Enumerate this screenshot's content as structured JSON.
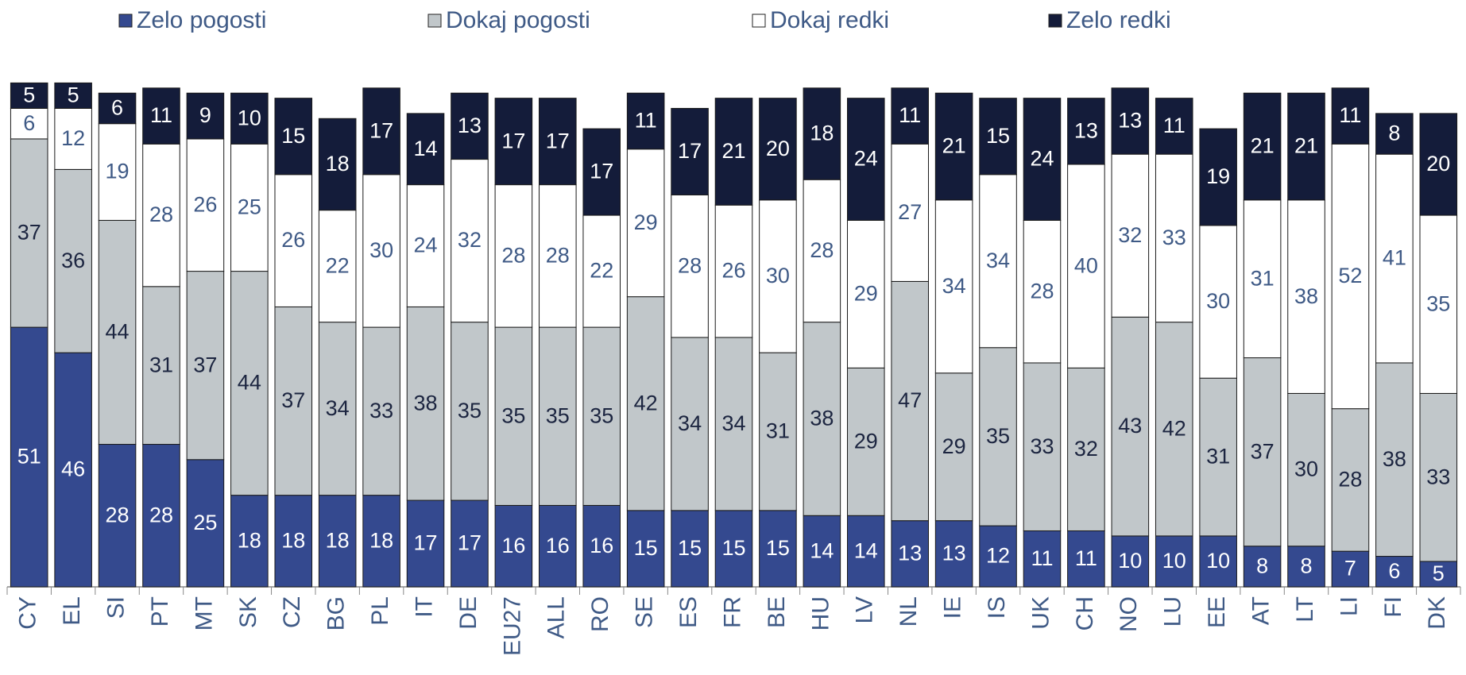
{
  "chart_data": {
    "type": "stacked_bar",
    "categories": [
      "CY",
      "EL",
      "SI",
      "PT",
      "MT",
      "SK",
      "CZ",
      "BG",
      "PL",
      "IT",
      "DE",
      "EU27",
      "ALL",
      "RO",
      "SE",
      "ES",
      "FR",
      "BE",
      "HU",
      "LV",
      "NL",
      "IE",
      "IS",
      "UK",
      "CH",
      "NO",
      "LU",
      "EE",
      "AT",
      "LT",
      "LI",
      "FI",
      "DK"
    ],
    "series": [
      {
        "name": "Zelo pogosti",
        "color": "#34498f",
        "label_color": "#ffffff",
        "values": [
          51,
          46,
          28,
          28,
          25,
          18,
          18,
          18,
          18,
          17,
          17,
          16,
          16,
          16,
          15,
          15,
          15,
          15,
          14,
          14,
          13,
          13,
          12,
          11,
          11,
          10,
          10,
          10,
          8,
          8,
          7,
          6,
          5
        ]
      },
      {
        "name": "Dokaj pogosti",
        "color": "#c1c7ca",
        "label_color": "#1c2540",
        "values": [
          37,
          36,
          44,
          31,
          37,
          44,
          37,
          34,
          33,
          38,
          35,
          35,
          35,
          35,
          42,
          34,
          34,
          31,
          38,
          29,
          47,
          29,
          35,
          33,
          32,
          43,
          42,
          31,
          37,
          30,
          28,
          38,
          33
        ]
      },
      {
        "name": "Dokaj redki",
        "color": "#ffffff",
        "label_color": "#3f5a86",
        "values": [
          6,
          12,
          19,
          28,
          26,
          25,
          26,
          22,
          30,
          24,
          32,
          28,
          28,
          22,
          29,
          28,
          26,
          30,
          28,
          29,
          27,
          34,
          34,
          28,
          40,
          32,
          33,
          30,
          31,
          38,
          52,
          41,
          35
        ]
      },
      {
        "name": "Zelo redki",
        "color": "#141c3a",
        "label_color": "#ffffff",
        "values": [
          5,
          5,
          6,
          11,
          9,
          10,
          15,
          18,
          17,
          14,
          13,
          17,
          17,
          17,
          11,
          17,
          21,
          20,
          18,
          24,
          11,
          21,
          15,
          24,
          13,
          13,
          11,
          19,
          21,
          21,
          11,
          8,
          20
        ]
      }
    ]
  }
}
